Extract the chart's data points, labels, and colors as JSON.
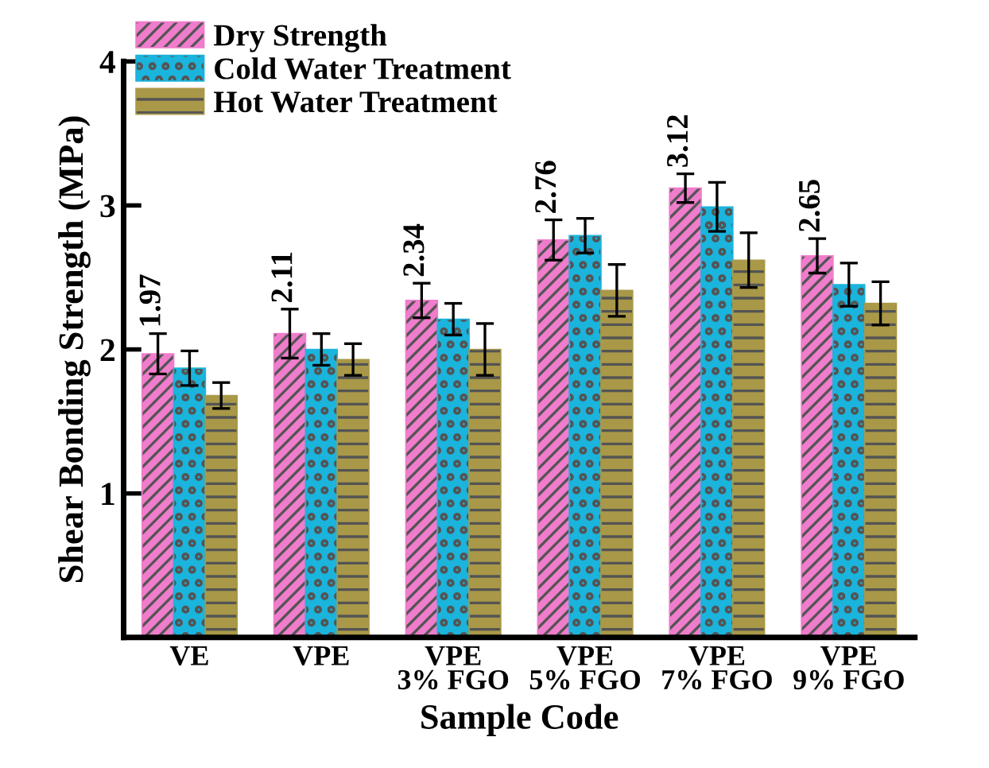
{
  "chart_data": {
    "type": "bar",
    "xlabel": "Sample Code",
    "ylabel": "Shear Bonding Strength (MPa)",
    "categories": [
      "VE",
      "VPE",
      "VPE\n3% FGO",
      "VPE\n5% FGO",
      "VPE\n7% FGO",
      "VPE\n9% FGO"
    ],
    "series": [
      {
        "name": "Dry Strength",
        "color": "#f07ccc",
        "values": [
          1.97,
          2.11,
          2.34,
          2.76,
          3.12,
          2.65
        ],
        "errors": [
          0.14,
          0.17,
          0.12,
          0.14,
          0.1,
          0.12
        ],
        "data_labels": true
      },
      {
        "name": "Cold Water Treatment",
        "color": "#1ab4dc",
        "values": [
          1.87,
          2.0,
          2.21,
          2.79,
          2.99,
          2.45
        ],
        "errors": [
          0.12,
          0.11,
          0.11,
          0.12,
          0.17,
          0.15
        ]
      },
      {
        "name": "Hot Water Treatment",
        "color": "#a89848",
        "values": [
          1.68,
          1.93,
          2.0,
          2.41,
          2.62,
          2.32
        ],
        "errors": [
          0.09,
          0.11,
          0.18,
          0.18,
          0.19,
          0.15
        ]
      }
    ],
    "ylim": [
      0,
      4
    ],
    "yticks": [
      1,
      2,
      3,
      4
    ],
    "legend": "top left",
    "grid": false
  }
}
